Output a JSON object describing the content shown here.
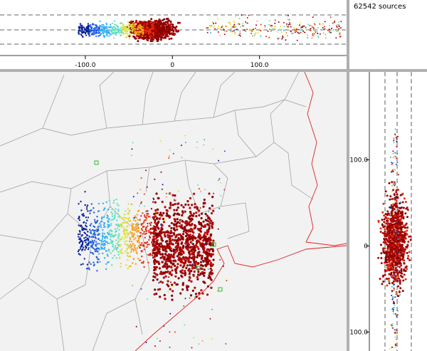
{
  "sources_label": "62542 sources",
  "top_axis": {
    "xlim": [
      -198,
      200
    ],
    "xticks": [
      {
        "value": -100,
        "label": "-100.0"
      },
      0,
      {
        "value": 100,
        "label": "100.0"
      }
    ]
  },
  "side_axis": {
    "ylim": [
      -122,
      202
    ],
    "yticks": [
      {
        "value": 100,
        "label": "100.0"
      },
      0,
      {
        "value": -100,
        "label": "-100.0"
      }
    ]
  }
}
